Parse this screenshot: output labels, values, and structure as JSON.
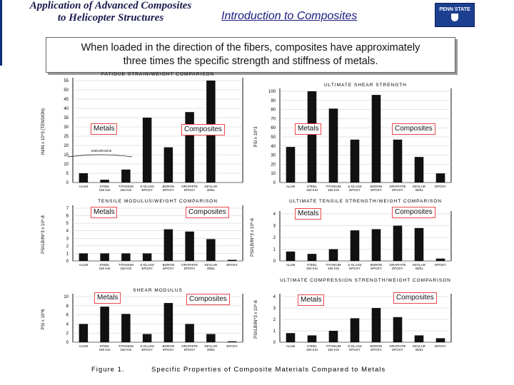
{
  "header": {
    "title_line1": "Application of Advanced Composites",
    "title_line2": "to Helicopter Structures",
    "section": "Introduction to Composites",
    "logo_text": "PENN STATE"
  },
  "callout": {
    "line1": "When loaded in the direction of the fibers, composites have approximately",
    "line2": "three times the specific strength and stiffness of metals."
  },
  "markers": {
    "metals": "Metals",
    "composites": "Composites"
  },
  "figure": {
    "number": "Figure 1.",
    "caption": "Specific Properties of Composite Materials Compared to Metals",
    "endurance_label": "ENDURANCE"
  },
  "colors": {
    "bar": "#111111",
    "marker_border": "#e8484b",
    "header_text": "#1a1a4e",
    "section_text": "#1a1a80"
  },
  "chart_data": [
    {
      "type": "bar",
      "title": "FATIGUE STRAIN/WEIGHT COMPARISON",
      "ylabel": "IN/IN x 10^3 (TENSION)",
      "ylim": [
        0,
        55
      ],
      "yticks": [
        0,
        5,
        10,
        15,
        20,
        25,
        30,
        35,
        40,
        45,
        50,
        55
      ],
      "categories": [
        "ALUM",
        "STEEL",
        "TITANIUM",
        "S-GLASS",
        "BORON",
        "GRAPHITE",
        "KEVLAR",
        ""
      ],
      "sublabels": [
        "",
        "150 KSI",
        "150 KSI",
        "EPOXY",
        "EPOXY",
        "EPOXY",
        "49/51",
        ""
      ],
      "values": [
        5,
        1.5,
        7,
        35,
        19,
        38,
        55,
        0
      ]
    },
    {
      "type": "bar",
      "title": "ULTIMATE SHEAR STRENGTH",
      "ylabel": "PSI x 10^3",
      "ylim": [
        0,
        100
      ],
      "yticks": [
        0,
        10,
        20,
        30,
        40,
        50,
        60,
        70,
        80,
        90,
        100
      ],
      "categories": [
        "ALUM",
        "STEEL",
        "TITANIUM",
        "S-GLASS",
        "BORON",
        "GRAPHITE",
        "KEVLAR",
        "EPOXY"
      ],
      "sublabels": [
        "",
        "150 KSI",
        "150 KSI",
        "EPOXY",
        "EPOXY",
        "EPOXY",
        "49/51",
        ""
      ],
      "values": [
        39,
        100,
        81,
        47,
        96,
        47,
        28,
        10
      ]
    },
    {
      "type": "bar",
      "title": "TENSILE MODULUS/WEIGHT COMPARISON",
      "ylabel": "PSI/LB/IN^3 x 10^-8",
      "ylim": [
        0,
        7
      ],
      "yticks": [
        0,
        1,
        2,
        3,
        4,
        5,
        6,
        7
      ],
      "categories": [
        "ALUM",
        "STEEL",
        "TITANIUM",
        "S-GLASS",
        "BORON",
        "GRAPHITE",
        "KEVLAR",
        "EPOXY"
      ],
      "sublabels": [
        "",
        "150 KSI",
        "150 KSI",
        "EPOXY",
        "EPOXY",
        "EPOXY",
        "49/51",
        ""
      ],
      "values": [
        1,
        1,
        1,
        1,
        4.2,
        3.9,
        2.9,
        0.15
      ]
    },
    {
      "type": "bar",
      "title": "ULTIMATE TENSILE STRENGTH/WEIGHT COMPARISON",
      "ylabel": "PSI/LB/IN^3 x 10^-6",
      "ylim": [
        0,
        4
      ],
      "yticks": [
        0,
        1,
        2,
        3,
        4
      ],
      "categories": [
        "ALUM",
        "STEEL",
        "TITANIUM",
        "S-GLASS",
        "BORON",
        "GRAPHITE",
        "KEVLAR",
        "EPOXY"
      ],
      "sublabels": [
        "",
        "150 KSI",
        "150 KSI",
        "EPOXY",
        "EPOXY",
        "EPOXY",
        "49/51",
        ""
      ],
      "values": [
        0.8,
        0.6,
        1.0,
        2.6,
        2.7,
        3.0,
        2.8,
        0.2
      ]
    },
    {
      "type": "bar",
      "title": "SHEAR MODULUS",
      "ylabel": "PSI x 10^6",
      "ylim": [
        0,
        10
      ],
      "yticks": [
        0,
        2,
        4,
        6,
        8,
        10
      ],
      "categories": [
        "ALUM",
        "STEEL",
        "TITANIUM",
        "S-GLASS",
        "BORON",
        "GRAPHITE",
        "KEVLAR",
        "EPOXY"
      ],
      "sublabels": [
        "",
        "150 KSI",
        "150 KSI",
        "EPOXY",
        "EPOXY",
        "EPOXY",
        "49/51",
        ""
      ],
      "values": [
        4,
        7.8,
        6.2,
        1.8,
        8.6,
        4,
        1.8,
        0.2
      ]
    },
    {
      "type": "bar",
      "title": "ULTIMATE COMPRESSION STRENGTH/WEIGHT COMPARISON",
      "ylabel": "PSI/LB/IN^3 x 10^-6",
      "ylim": [
        0,
        4
      ],
      "yticks": [
        0,
        1,
        2,
        3,
        4
      ],
      "categories": [
        "ALUM",
        "STEEL",
        "TITANIUM",
        "S-GLASS",
        "BORON",
        "GRAPHITE",
        "KEVLAR",
        "EPOXY"
      ],
      "sublabels": [
        "",
        "150 KSI",
        "150 KSI",
        "EPOXY",
        "EPOXY",
        "EPOXY",
        "49/51",
        ""
      ],
      "values": [
        0.8,
        0.6,
        1.0,
        2.1,
        3.0,
        2.2,
        0.6,
        0.35
      ]
    }
  ]
}
